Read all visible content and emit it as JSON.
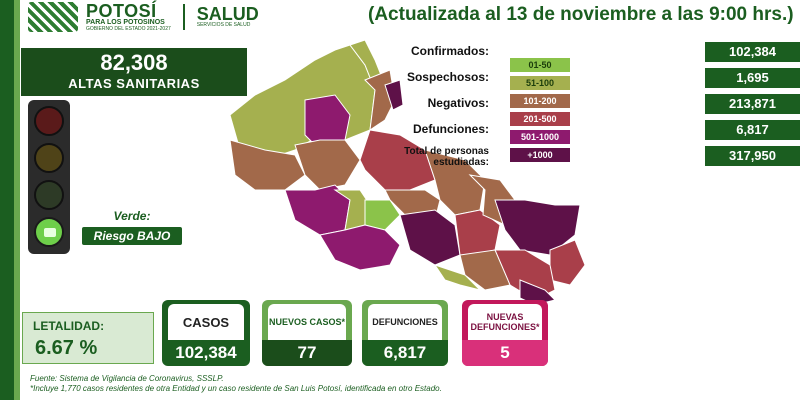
{
  "header": {
    "logo_title": "POTOSÍ",
    "logo_sub": "PARA LOS POTOSINOS",
    "logo_small": "GOBIERNO DEL ESTADO 2021-2027",
    "salud": "SALUD",
    "salud_sub": "SERVICIOS DE SALUD",
    "update_text": "(Actualizada al 13 de noviembre a las 9:00 hrs.)"
  },
  "altas": {
    "value": "82,308",
    "label": "ALTAS SANITARIAS"
  },
  "semaforo": {
    "status_label": "Verde:",
    "risk": "Riesgo BAJO"
  },
  "legend": [
    {
      "label": "01-50",
      "color": "#8bc34a",
      "text_color": "#1b3d0b"
    },
    {
      "label": "51-100",
      "color": "#a5b04f",
      "text_color": "#1b3d0b"
    },
    {
      "label": "101-200",
      "color": "#a2694a",
      "text_color": "#ffffff"
    },
    {
      "label": "201-500",
      "color": "#a93f4a",
      "text_color": "#ffffff"
    },
    {
      "label": "501-1000",
      "color": "#8e1a6e",
      "text_color": "#ffffff"
    },
    {
      "label": "+1000",
      "color": "#5e1148",
      "text_color": "#ffffff"
    }
  ],
  "stats": [
    {
      "label": "Confirmados:",
      "value": "102,384"
    },
    {
      "label": "Sospechosos:",
      "value": "1,695"
    },
    {
      "label": "Negativos:",
      "value": "213,871"
    },
    {
      "label": "Defunciones:",
      "value": "6,817"
    },
    {
      "label": "Total de personas estudiadas:",
      "value": "317,950"
    }
  ],
  "bottom": {
    "letalidad_label": "LETALIDAD:",
    "letalidad_value": "6.67 %",
    "casos_label": "CASOS",
    "casos_value": "102,384",
    "nuevos_casos_label": "NUEVOS CASOS*",
    "nuevos_casos_value": "77",
    "defunciones_label": "DEFUNCIONES",
    "defunciones_value": "6,817",
    "nuevas_def_label": "NUEVAS DEFUNCIONES*",
    "nuevas_def_value": "5"
  },
  "source": {
    "line1": "Fuente: Sistema de Vigilancia de Coronavirus, SSSLP.",
    "line2": "*Incluye 1,770 casos residentes de otra Entidad y un caso residente de San Luis Potosí, identificada en otro Estado."
  },
  "colors": {
    "dark_green": "#1b5e20",
    "mid_green": "#6aa84f",
    "magenta": "#c2185b"
  }
}
